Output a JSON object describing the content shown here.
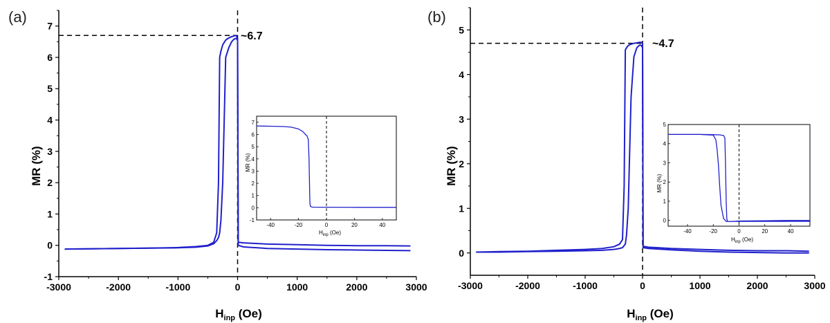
{
  "chart_data": [
    {
      "type": "line",
      "panel_label": "(a)",
      "xlabel_main": "H",
      "xlabel_sub": "inp",
      "xlabel_unit": " (Oe)",
      "ylabel": "MR (%)",
      "xlim": [
        -3000,
        3000
      ],
      "ylim": [
        -1,
        7.5
      ],
      "xticks": [
        "-3000",
        "-2000",
        "-1000",
        "0",
        "1000",
        "2000",
        "3000"
      ],
      "yticks": [
        "-1",
        "0",
        "1",
        "2",
        "3",
        "4",
        "5",
        "6",
        "7"
      ],
      "annotation": "~6.7",
      "peak_value": 6.7,
      "line_color": "#2020cc",
      "series": [
        {
          "x": [
            -2900,
            -2500,
            -2000,
            -1500,
            -1000,
            -700,
            -500,
            -400,
            -350,
            -320,
            -300,
            -280,
            -250,
            -200,
            -150,
            -100,
            -60,
            -40,
            -30,
            -20,
            0,
            10,
            100,
            500,
            1000,
            1500,
            2000,
            2500,
            2900
          ],
          "values": [
            -0.12,
            -0.11,
            -0.1,
            -0.09,
            -0.07,
            -0.04,
            0.0,
            0.1,
            0.4,
            2.0,
            6.0,
            6.2,
            6.4,
            6.55,
            6.62,
            6.66,
            6.68,
            6.7,
            6.7,
            6.68,
            6.6,
            0.1,
            0.08,
            0.04,
            0.02,
            0.0,
            -0.01,
            -0.01,
            -0.02
          ]
        },
        {
          "x": [
            2900,
            2500,
            2000,
            1500,
            1000,
            500,
            100,
            10,
            0,
            -20,
            -40,
            -60,
            -100,
            -150,
            -200,
            -250,
            -280,
            -300,
            -320,
            -350,
            -400,
            -500,
            -700,
            -1000,
            -1500,
            -2000,
            -2500,
            -2900
          ],
          "values": [
            -0.17,
            -0.16,
            -0.15,
            -0.14,
            -0.12,
            -0.1,
            -0.05,
            0.0,
            6.55,
            6.6,
            6.6,
            6.58,
            6.5,
            6.3,
            6.0,
            2.0,
            0.8,
            0.4,
            0.25,
            0.15,
            0.05,
            -0.02,
            -0.06,
            -0.08,
            -0.09,
            -0.1,
            -0.11,
            -0.12
          ]
        }
      ],
      "inset": {
        "xlim": [
          -50,
          50
        ],
        "ylim": [
          -1,
          7.5
        ],
        "xticks": [
          "-40",
          "-20",
          "0",
          "20",
          "40"
        ],
        "yticks": [
          "-1",
          "0",
          "1",
          "2",
          "3",
          "4",
          "5",
          "6",
          "7"
        ],
        "xlabel_main": "H",
        "xlabel_sub": "inp",
        "xlabel_unit": " (Oe)",
        "ylabel": "MR (%)",
        "series": [
          {
            "x": [
              -50,
              -40,
              -30,
              -25,
              -20,
              -17,
              -15,
              -14,
              -13,
              -12.5,
              -12,
              -11.8,
              -11.5,
              -11,
              -10,
              0,
              20,
              40,
              50
            ],
            "values": [
              6.7,
              6.68,
              6.65,
              6.6,
              6.45,
              6.25,
              6.0,
              5.9,
              5.6,
              4.0,
              1.0,
              0.3,
              0.12,
              0.08,
              0.05,
              0.04,
              0.03,
              0.03,
              0.03
            ]
          }
        ]
      }
    },
    {
      "type": "line",
      "panel_label": "(b)",
      "xlabel_main": "H",
      "xlabel_sub": "inp",
      "xlabel_unit": " (Oe)",
      "ylabel": "MR (%)",
      "xlim": [
        -3000,
        3000
      ],
      "ylim": [
        -0.5,
        5.5
      ],
      "xticks": [
        "-3000",
        "-2000",
        "-1000",
        "0",
        "1000",
        "2000",
        "3000"
      ],
      "yticks": [
        "0",
        "1",
        "2",
        "3",
        "4",
        "5"
      ],
      "annotation": "~4.7",
      "peak_value": 4.7,
      "line_color": "#2020cc",
      "series": [
        {
          "x": [
            -2900,
            -2500,
            -2000,
            -1500,
            -1000,
            -700,
            -500,
            -400,
            -350,
            -320,
            -300,
            -280,
            -250,
            -200,
            -150,
            -100,
            -60,
            -40,
            -20,
            0,
            10,
            100,
            500,
            1000,
            1500,
            2000,
            2500,
            2900
          ],
          "values": [
            0.02,
            0.03,
            0.04,
            0.06,
            0.08,
            0.1,
            0.14,
            0.2,
            0.3,
            1.5,
            4.55,
            4.6,
            4.65,
            4.68,
            4.7,
            4.71,
            4.72,
            4.72,
            4.72,
            4.7,
            0.15,
            0.13,
            0.1,
            0.08,
            0.06,
            0.05,
            0.05,
            0.04
          ]
        },
        {
          "x": [
            2900,
            2500,
            2000,
            1500,
            1000,
            500,
            100,
            10,
            0,
            -20,
            -40,
            -60,
            -100,
            -150,
            -200,
            -230,
            -250,
            -280,
            -300,
            -350,
            -400,
            -500,
            -700,
            -1000,
            -1500,
            -2000,
            -2500,
            -2900
          ],
          "values": [
            0.0,
            0.0,
            0.01,
            0.02,
            0.04,
            0.07,
            0.1,
            0.12,
            4.6,
            4.65,
            4.66,
            4.65,
            4.6,
            4.4,
            3.5,
            2.0,
            1.0,
            0.4,
            0.2,
            0.12,
            0.1,
            0.08,
            0.06,
            0.05,
            0.04,
            0.03,
            0.02,
            0.02
          ]
        }
      ],
      "inset": {
        "xlim": [
          -55,
          55
        ],
        "ylim": [
          -0.3,
          5
        ],
        "xticks": [
          "-40",
          "-20",
          "0",
          "20",
          "40"
        ],
        "yticks": [
          "0",
          "1",
          "2",
          "3",
          "4",
          "5"
        ],
        "xlabel_main": "H",
        "xlabel_sub": "inp",
        "xlabel_unit": " (Oe)",
        "ylabel": "MR (%)",
        "series": [
          {
            "x": [
              -55,
              -40,
              -30,
              -20,
              -15,
              -12,
              -11,
              -10.5,
              -10,
              -9.5,
              -9,
              -5,
              0,
              20,
              40,
              55
            ],
            "values": [
              4.48,
              4.48,
              4.48,
              4.47,
              4.46,
              4.43,
              4.3,
              3.0,
              1.0,
              0.1,
              -0.05,
              -0.05,
              -0.05,
              -0.05,
              -0.05,
              -0.05
            ]
          },
          {
            "x": [
              55,
              40,
              20,
              0,
              -5,
              -10,
              -12,
              -14,
              -15,
              -16,
              -17,
              -18,
              -20,
              -30,
              -40,
              -55
            ],
            "values": [
              0.0,
              0.0,
              -0.02,
              -0.03,
              -0.05,
              -0.05,
              0.1,
              0.8,
              1.8,
              2.9,
              3.7,
              4.2,
              4.45,
              4.48,
              4.48,
              4.48
            ]
          }
        ]
      }
    }
  ]
}
